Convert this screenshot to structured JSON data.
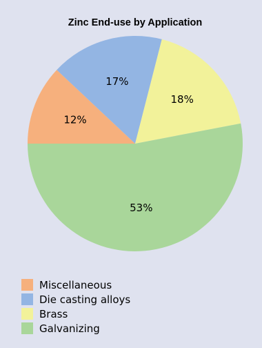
{
  "chart_data": {
    "type": "pie",
    "title": "Zinc End-use by Application",
    "start_angle_deg": 180,
    "direction": "clockwise",
    "legend_position": "bottom-left",
    "slices": [
      {
        "name": "Miscellaneous",
        "value": 12,
        "label": "12%",
        "color": "#f6b07d"
      },
      {
        "name": "Die casting alloys",
        "value": 17,
        "label": "17%",
        "color": "#93b5e3"
      },
      {
        "name": "Brass",
        "value": 18,
        "label": "18%",
        "color": "#f2f29a"
      },
      {
        "name": "Galvanizing",
        "value": 53,
        "label": "53%",
        "color": "#a9d69a"
      }
    ]
  }
}
